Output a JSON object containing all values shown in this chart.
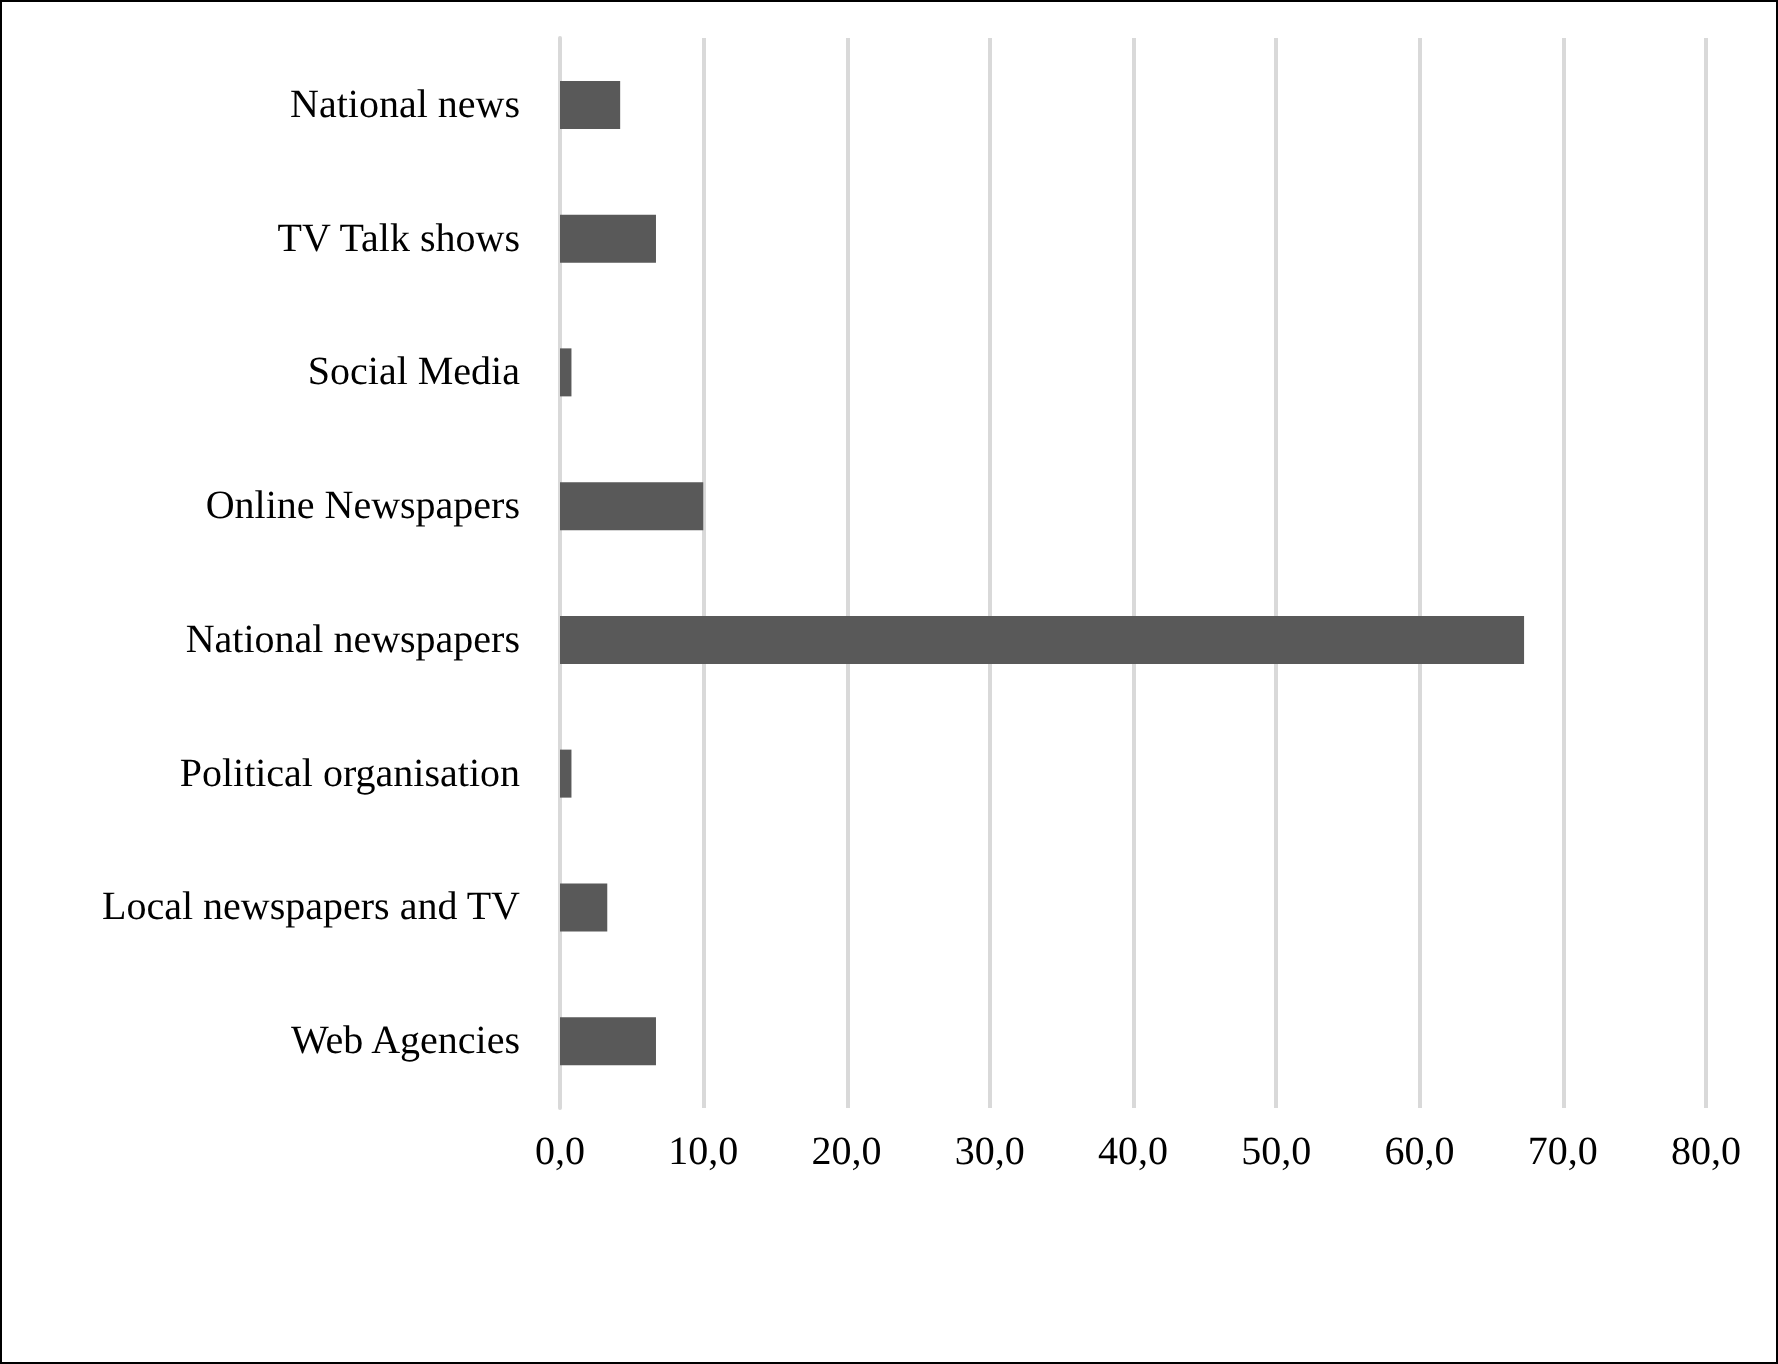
{
  "chart_data": {
    "type": "bar",
    "orientation": "horizontal",
    "categories": [
      "National news",
      "TV Talk shows",
      "Social Media",
      "Online Newspapers",
      "National newspapers",
      "Political organisation",
      "Local newspapers and TV",
      "Web Agencies"
    ],
    "values": [
      4.2,
      6.7,
      0.8,
      10.0,
      67.3,
      0.8,
      3.3,
      6.7
    ],
    "color": "#595959",
    "xlim": [
      0,
      80
    ],
    "xticks": [
      {
        "value": 0,
        "label": "0,0"
      },
      {
        "value": 10,
        "label": "10,0"
      },
      {
        "value": 20,
        "label": "20,0"
      },
      {
        "value": 30,
        "label": "30,0"
      },
      {
        "value": 40,
        "label": "40,0"
      },
      {
        "value": 50,
        "label": "50,0"
      },
      {
        "value": 60,
        "label": "60,0"
      },
      {
        "value": 70,
        "label": "70,0"
      },
      {
        "value": 80,
        "label": "80,0"
      }
    ],
    "grid": "x"
  }
}
